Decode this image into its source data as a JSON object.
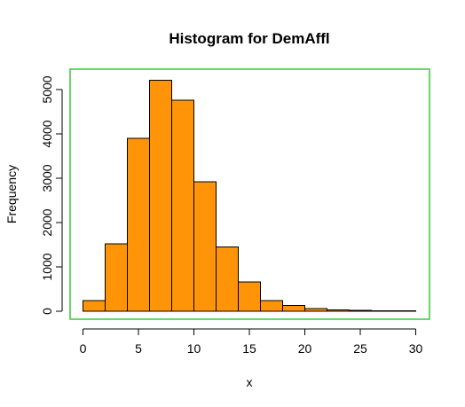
{
  "chart_data": {
    "type": "bar",
    "title": "Histogram for DemAffl",
    "xlabel": "x",
    "ylabel": "Frequency",
    "bin_edges": [
      0,
      2,
      4,
      6,
      8,
      10,
      12,
      14,
      16,
      18,
      20,
      22,
      24,
      26,
      28,
      30
    ],
    "values": [
      240,
      1520,
      3900,
      5210,
      4760,
      2920,
      1450,
      660,
      240,
      130,
      60,
      30,
      20,
      10,
      10
    ],
    "xlim": [
      0,
      30
    ],
    "ylim": [
      0,
      5200
    ],
    "x_ticks": [
      0,
      5,
      10,
      15,
      20,
      25,
      30
    ],
    "y_ticks": [
      0,
      1000,
      2000,
      3000,
      4000,
      5000
    ],
    "bar_fill": "#ff9408",
    "bar_stroke": "#000000",
    "box_color": "#33cc33",
    "grid": false,
    "legend": "none"
  }
}
